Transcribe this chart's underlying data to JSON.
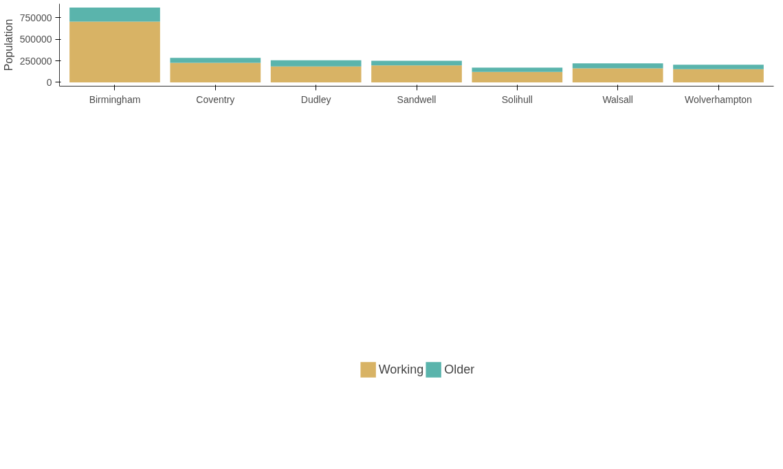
{
  "chart_data": {
    "type": "bar",
    "stacked": true,
    "ylabel": "Population",
    "categories": [
      "Birmingham",
      "Coventry",
      "Dudley",
      "Sandwell",
      "Solihull",
      "Walsall",
      "Wolverhampton"
    ],
    "series": [
      {
        "name": "Working",
        "color": "#d8b365",
        "values": [
          705000,
          227000,
          186000,
          196000,
          121000,
          164000,
          154000
        ]
      },
      {
        "name": "Older",
        "color": "#5ab4ac",
        "values": [
          164000,
          57000,
          71000,
          55000,
          50000,
          57000,
          50000
        ]
      }
    ],
    "ylim": [
      -44000,
      912000
    ],
    "yticks": [
      0,
      250000,
      500000,
      750000
    ],
    "grid": false,
    "legend": "bottom"
  }
}
